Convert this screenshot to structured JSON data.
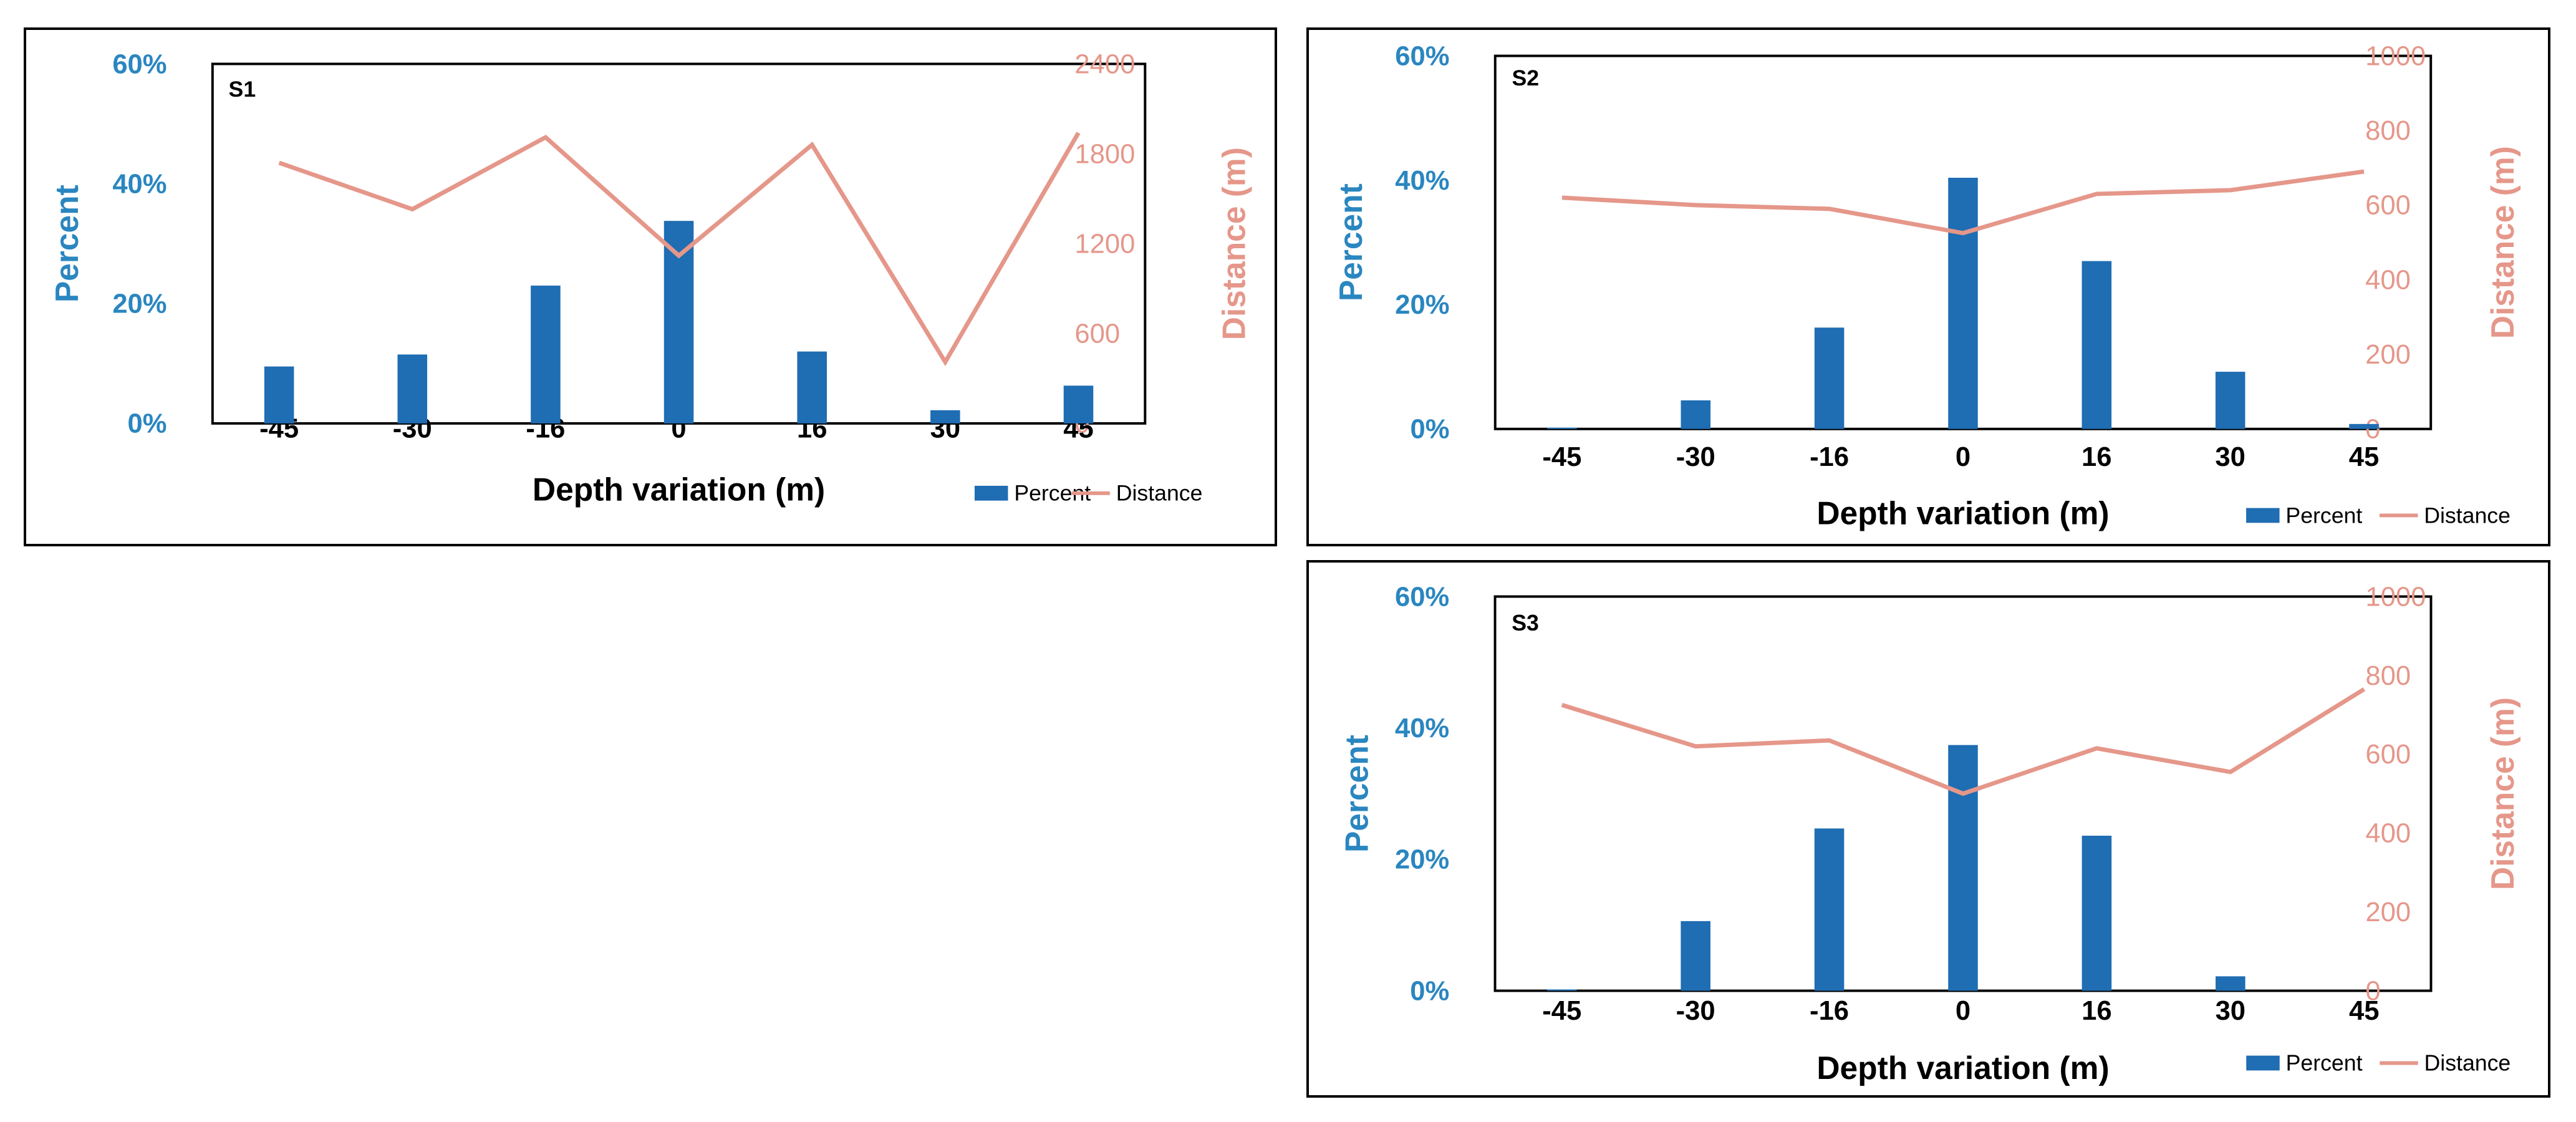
{
  "chart_data": [
    {
      "type": "bar+line",
      "id": "s1",
      "panel_label": "S1",
      "categories": [
        "-45",
        "-30",
        "-16",
        "0",
        "16",
        "30",
        "45"
      ],
      "series": [
        {
          "name": "Percent",
          "type": "bar",
          "axis": "left",
          "values": [
            0.095,
            0.115,
            0.23,
            0.338,
            0.12,
            0.022,
            0.063
          ]
        },
        {
          "name": "Distance",
          "type": "line",
          "axis": "right",
          "values": [
            1740,
            1430,
            1910,
            1120,
            1860,
            410,
            1940
          ]
        }
      ],
      "xlabel": "Depth variation (m)",
      "ylabel_left": "Percent",
      "ylabel_right": "Distance (m)",
      "ylim_left": [
        0,
        0.6
      ],
      "ylim_right": [
        0,
        2400
      ],
      "yticks_left": [
        "0%",
        "20%",
        "40%",
        "60%"
      ],
      "yticks_right": [
        "0",
        "600",
        "1200",
        "1800",
        "2400"
      ],
      "legend": {
        "bar": "Percent",
        "line": "Distance",
        "position": "bottom-right"
      }
    },
    {
      "type": "bar+line",
      "id": "s2",
      "panel_label": "S2",
      "categories": [
        "-45",
        "-30",
        "-16",
        "0",
        "16",
        "30",
        "45"
      ],
      "series": [
        {
          "name": "Percent",
          "type": "bar",
          "axis": "left",
          "values": [
            0.002,
            0.046,
            0.163,
            0.404,
            0.27,
            0.092,
            0.008
          ]
        },
        {
          "name": "Distance",
          "type": "line",
          "axis": "right",
          "values": [
            620,
            600,
            590,
            525,
            630,
            640,
            690
          ]
        }
      ],
      "xlabel": "Depth variation (m)",
      "ylabel_left": "Percent",
      "ylabel_right": "Distance (m)",
      "ylim_left": [
        0,
        0.6
      ],
      "ylim_right": [
        0,
        1000
      ],
      "yticks_left": [
        "0%",
        "20%",
        "40%",
        "60%"
      ],
      "yticks_right": [
        "0",
        "200",
        "400",
        "600",
        "800",
        "1000"
      ],
      "legend": {
        "bar": "Percent",
        "line": "Distance",
        "position": "bottom-right"
      }
    },
    {
      "type": "bar+line",
      "id": "s3",
      "panel_label": "S3",
      "categories": [
        "-45",
        "-30",
        "-16",
        "0",
        "16",
        "30",
        "45"
      ],
      "series": [
        {
          "name": "Percent",
          "type": "bar",
          "axis": "left",
          "values": [
            0.002,
            0.106,
            0.247,
            0.374,
            0.236,
            0.022,
            0.0
          ]
        },
        {
          "name": "Distance",
          "type": "line",
          "axis": "right",
          "values": [
            725,
            620,
            635,
            500,
            615,
            555,
            765
          ]
        }
      ],
      "xlabel": "Depth variation (m)",
      "ylabel_left": "Percent",
      "ylabel_right": "Distance (m)",
      "ylim_left": [
        0,
        0.6
      ],
      "ylim_right": [
        0,
        1000
      ],
      "yticks_left": [
        "0%",
        "20%",
        "40%",
        "60%"
      ],
      "yticks_right": [
        "0",
        "200",
        "400",
        "600",
        "800",
        "1000"
      ],
      "legend": {
        "bar": "Percent",
        "line": "Distance",
        "position": "bottom-right"
      }
    }
  ],
  "colors": {
    "bar": "#1f6db3",
    "line": "#e5978a",
    "left_axis_text": "#2a86c0",
    "right_axis_text": "#e5978a"
  }
}
